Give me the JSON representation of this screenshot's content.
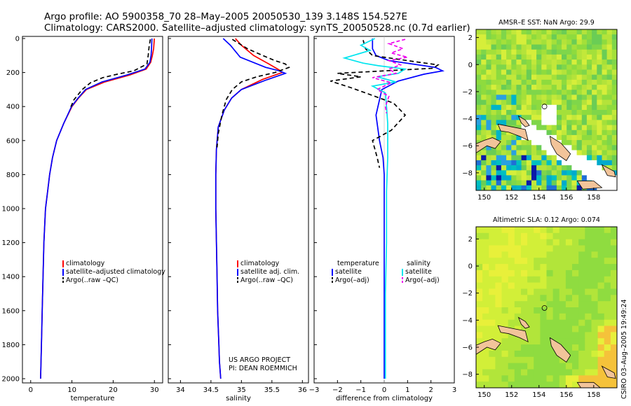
{
  "figure": {
    "title_line1": "Argo profile: AO 5900358_70 28–May–2005 20050530_139 3.148S 154.527E",
    "title_line2": "Climatology: CARS2000. Satellite–adjusted climatology: synTS_20050528.nc (0.7d earlier)",
    "credit_line1": "US ARGO PROJECT",
    "credit_line2": "PI: DEAN ROEMMICH",
    "side_stamp": "CSIRO 03–Aug–2005 19:49:24",
    "colors": {
      "red": "#ff0000",
      "blue": "#0000ff",
      "black": "#000000",
      "cyan": "#00e5ee",
      "magenta": "#ee00ee"
    }
  },
  "chart_data": [
    {
      "type": "line",
      "name": "temperature",
      "xlabel": "temperature",
      "xlim": [
        -2,
        32
      ],
      "xticks": [
        0,
        10,
        20,
        30
      ],
      "ylim": [
        0,
        2050
      ],
      "yticks": [
        0,
        200,
        400,
        600,
        800,
        1000,
        1200,
        1400,
        1600,
        1800,
        2000
      ],
      "y_reversed": true,
      "legend": [
        "climatology",
        "satellite–adjusted climatology",
        "Argo(..raw –QC)"
      ],
      "series": [
        {
          "name": "climatology",
          "color": "#ff0000",
          "dash": "",
          "x": [
            30.0,
            29.8,
            29.5,
            29.1,
            28.0,
            24.0,
            18.0,
            13.5,
            11.6,
            10.0,
            8.0,
            6.3,
            5.3,
            4.6,
            4.1,
            3.6,
            3.2,
            3.0,
            2.8,
            2.6,
            2.5,
            2.4
          ],
          "y": [
            0,
            60,
            100,
            140,
            180,
            215,
            255,
            300,
            350,
            400,
            500,
            600,
            700,
            800,
            900,
            1000,
            1200,
            1400,
            1600,
            1800,
            1900,
            2000
          ]
        },
        {
          "name": "satellite–adjusted climatology",
          "color": "#0000ff",
          "dash": "",
          "x": [
            29.4,
            29.3,
            29.2,
            28.9,
            27.7,
            23.3,
            17.3,
            13.3,
            11.5,
            9.9,
            8.0,
            6.3,
            5.3,
            4.6,
            4.1,
            3.6,
            3.2,
            3.0,
            2.8,
            2.6,
            2.5,
            2.4
          ],
          "y": [
            0,
            60,
            100,
            140,
            180,
            215,
            255,
            300,
            350,
            400,
            500,
            600,
            700,
            800,
            900,
            1000,
            1200,
            1400,
            1600,
            1800,
            1900,
            2000
          ]
        },
        {
          "name": "Argo(..raw –QC)",
          "color": "#000000",
          "dash": "6,4",
          "x": [
            29.0,
            28.7,
            28.5,
            28.2,
            25.0,
            21.0,
            17.5,
            14.5,
            12.5,
            10.5,
            9.6
          ],
          "y": [
            5,
            50,
            100,
            150,
            190,
            210,
            230,
            260,
            300,
            360,
            410
          ]
        }
      ]
    },
    {
      "type": "line",
      "name": "salinity",
      "xlabel": "salinity",
      "xlim": [
        33.8,
        36.1
      ],
      "xticks": [
        34,
        34.5,
        35,
        35.5,
        36
      ],
      "ylim": [
        0,
        2050
      ],
      "y_reversed": true,
      "legend": [
        "climatology",
        "satellite adj. clim.",
        "Argo(..raw –QC)"
      ],
      "series": [
        {
          "name": "climatology",
          "color": "#ff0000",
          "dash": "",
          "x": [
            34.9,
            35.0,
            35.2,
            35.45,
            35.62,
            35.67,
            35.35,
            35.0,
            34.84,
            34.72,
            34.62,
            34.59,
            34.58,
            34.58,
            34.59,
            34.6,
            34.61,
            34.63,
            34.64,
            34.65,
            34.66
          ],
          "y": [
            0,
            40,
            100,
            150,
            185,
            200,
            240,
            300,
            350,
            420,
            520,
            650,
            800,
            1000,
            1200,
            1400,
            1600,
            1800,
            1900,
            1950,
            2000
          ]
        },
        {
          "name": "satellite adj. clim.",
          "color": "#0000ff",
          "dash": "",
          "x": [
            34.7,
            34.82,
            34.98,
            35.4,
            35.62,
            35.72,
            35.4,
            35.0,
            34.84,
            34.72,
            34.62,
            34.59,
            34.58,
            34.58,
            34.59,
            34.6,
            34.61,
            34.63,
            34.64,
            34.65,
            34.66
          ],
          "y": [
            0,
            40,
            110,
            170,
            190,
            205,
            245,
            300,
            350,
            420,
            520,
            650,
            800,
            1000,
            1200,
            1400,
            1600,
            1800,
            1900,
            1950,
            2000
          ]
        },
        {
          "name": "Argo(..raw –QC)",
          "color": "#000000",
          "dash": "6,4",
          "x": [
            34.85,
            35.1,
            35.35,
            35.55,
            35.72,
            35.78,
            35.55,
            35.25,
            35.0,
            34.85,
            34.75,
            34.68,
            34.62,
            34.6
          ],
          "y": [
            5,
            60,
            100,
            130,
            150,
            170,
            200,
            225,
            255,
            300,
            360,
            450,
            560,
            640
          ]
        }
      ]
    },
    {
      "type": "line",
      "name": "difference",
      "xlabel": "difference from climatology",
      "xlim": [
        -3,
        3
      ],
      "xticks": [
        -3,
        -2,
        -1,
        0,
        1,
        2,
        3
      ],
      "ylim": [
        0,
        2050
      ],
      "y_reversed": true,
      "legend_left_title": "temperature",
      "legend_left": [
        "satellite",
        "Argo(–adj)"
      ],
      "legend_right_title": "salinity",
      "legend_right": [
        "satellite",
        "Argo(–adj)"
      ],
      "series": [
        {
          "name": "temperature satellite",
          "color": "#0000ff",
          "dash": "",
          "x": [
            -0.5,
            -0.5,
            -0.35,
            0.2,
            1.2,
            2.2,
            2.5,
            1.7,
            0.6,
            -0.1,
            -0.2,
            -0.35,
            -0.2,
            -0.05,
            0,
            0,
            0,
            0,
            0,
            0,
            0
          ],
          "y": [
            0,
            60,
            100,
            130,
            150,
            170,
            190,
            210,
            250,
            300,
            360,
            450,
            600,
            700,
            800,
            1000,
            1200,
            1400,
            1600,
            1800,
            2000
          ]
        },
        {
          "name": "temperature Argo(–adj)",
          "color": "#000000",
          "dash": "6,4",
          "x": [
            -0.9,
            -0.8,
            -0.5,
            0.5,
            1.5,
            2.3,
            2.1,
            0.7,
            -2.0,
            -1.0,
            -2.3,
            -1.4,
            -0.4,
            0.4,
            0.9,
            0.3,
            -0.5,
            -0.3,
            -0.2
          ],
          "y": [
            10,
            60,
            100,
            120,
            140,
            155,
            175,
            185,
            205,
            225,
            250,
            290,
            340,
            380,
            450,
            540,
            600,
            700,
            760
          ]
        },
        {
          "name": "salinity satellite",
          "color": "#00e5ee",
          "dash": "",
          "x": [
            -0.4,
            -1.0,
            -0.6,
            -1.7,
            -0.9,
            -0.25,
            0.9,
            0.6,
            -0.3,
            0.5,
            -0.5,
            0.05,
            0.1,
            0.15,
            0.15,
            0.1,
            0.1,
            0.05,
            0.05,
            0.05,
            0.05
          ],
          "y": [
            0,
            40,
            70,
            115,
            145,
            160,
            180,
            205,
            225,
            255,
            280,
            320,
            400,
            500,
            700,
            900,
            1200,
            1500,
            1700,
            1900,
            2000
          ]
        },
        {
          "name": "salinity Argo(–adj)",
          "color": "#ee00ee",
          "dash": "5,3",
          "x": [
            0.9,
            0.2,
            0.8,
            0.3,
            1.0,
            0.2,
            0.7,
            0.2,
            0.5,
            -0.5,
            0.3,
            -0.3,
            0.2,
            0.05,
            0.1
          ],
          "y": [
            5,
            30,
            60,
            85,
            110,
            130,
            155,
            180,
            205,
            230,
            260,
            300,
            340,
            400,
            440
          ]
        }
      ]
    }
  ],
  "maps": [
    {
      "title": "AMSR–E SST: NaN Argo: 29.9",
      "xticks": [
        "150",
        "152",
        "154",
        "156",
        "158"
      ],
      "yticks": [
        "2",
        "0",
        "−2",
        "−4",
        "−6",
        "−8"
      ]
    },
    {
      "title": "Altimetric SLA: 0.12 Argo: 0.074",
      "xticks": [
        "150",
        "152",
        "154",
        "156",
        "158"
      ],
      "yticks": [
        "2",
        "0",
        "−2",
        "−4",
        "−6",
        "−8"
      ]
    }
  ]
}
